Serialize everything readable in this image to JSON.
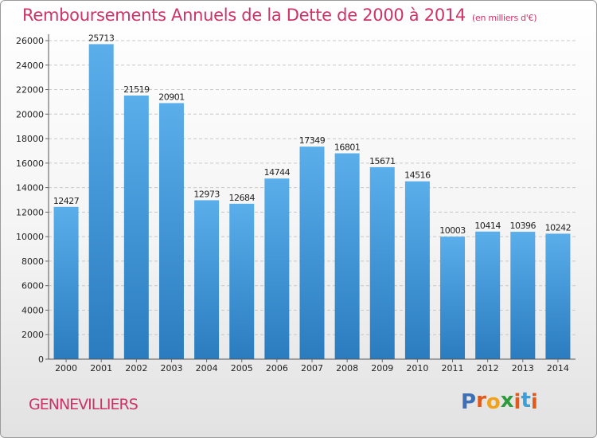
{
  "header": {
    "title": "Remboursements Annuels de la Dette de 2000 à 2014",
    "unit": "(en milliers d'€)"
  },
  "footer": {
    "city": "GENNEVILLIERS",
    "logo": [
      "P",
      "r",
      "o",
      "x",
      "i",
      "t",
      "i"
    ]
  },
  "colors": {
    "accent": "#cc3366",
    "bar_top": "#5aaeea",
    "bar_bottom": "#2a7cbf",
    "logo": [
      "#3c6fb5",
      "#e05a1c",
      "#f0a21c",
      "#2f9a3c",
      "#e05a1c",
      "#3c9fd8",
      "#e05a1c"
    ]
  },
  "chart_data": {
    "type": "bar",
    "title": "Remboursements Annuels de la Dette de 2000 à 2014",
    "subtitle": "(en milliers d'€)",
    "xlabel": "",
    "ylabel": "",
    "categories": [
      "2000",
      "2001",
      "2002",
      "2003",
      "2004",
      "2005",
      "2006",
      "2007",
      "2008",
      "2009",
      "2010",
      "2011",
      "2012",
      "2013",
      "2014"
    ],
    "values": [
      12427,
      25713,
      21519,
      20901,
      12973,
      12684,
      14744,
      17349,
      16801,
      15671,
      14516,
      10003,
      10414,
      10396,
      10242
    ],
    "ylim": [
      0,
      26000
    ],
    "yticks": [
      0,
      2000,
      4000,
      6000,
      8000,
      10000,
      12000,
      14000,
      16000,
      18000,
      20000,
      22000,
      24000,
      26000
    ],
    "grid": true
  }
}
